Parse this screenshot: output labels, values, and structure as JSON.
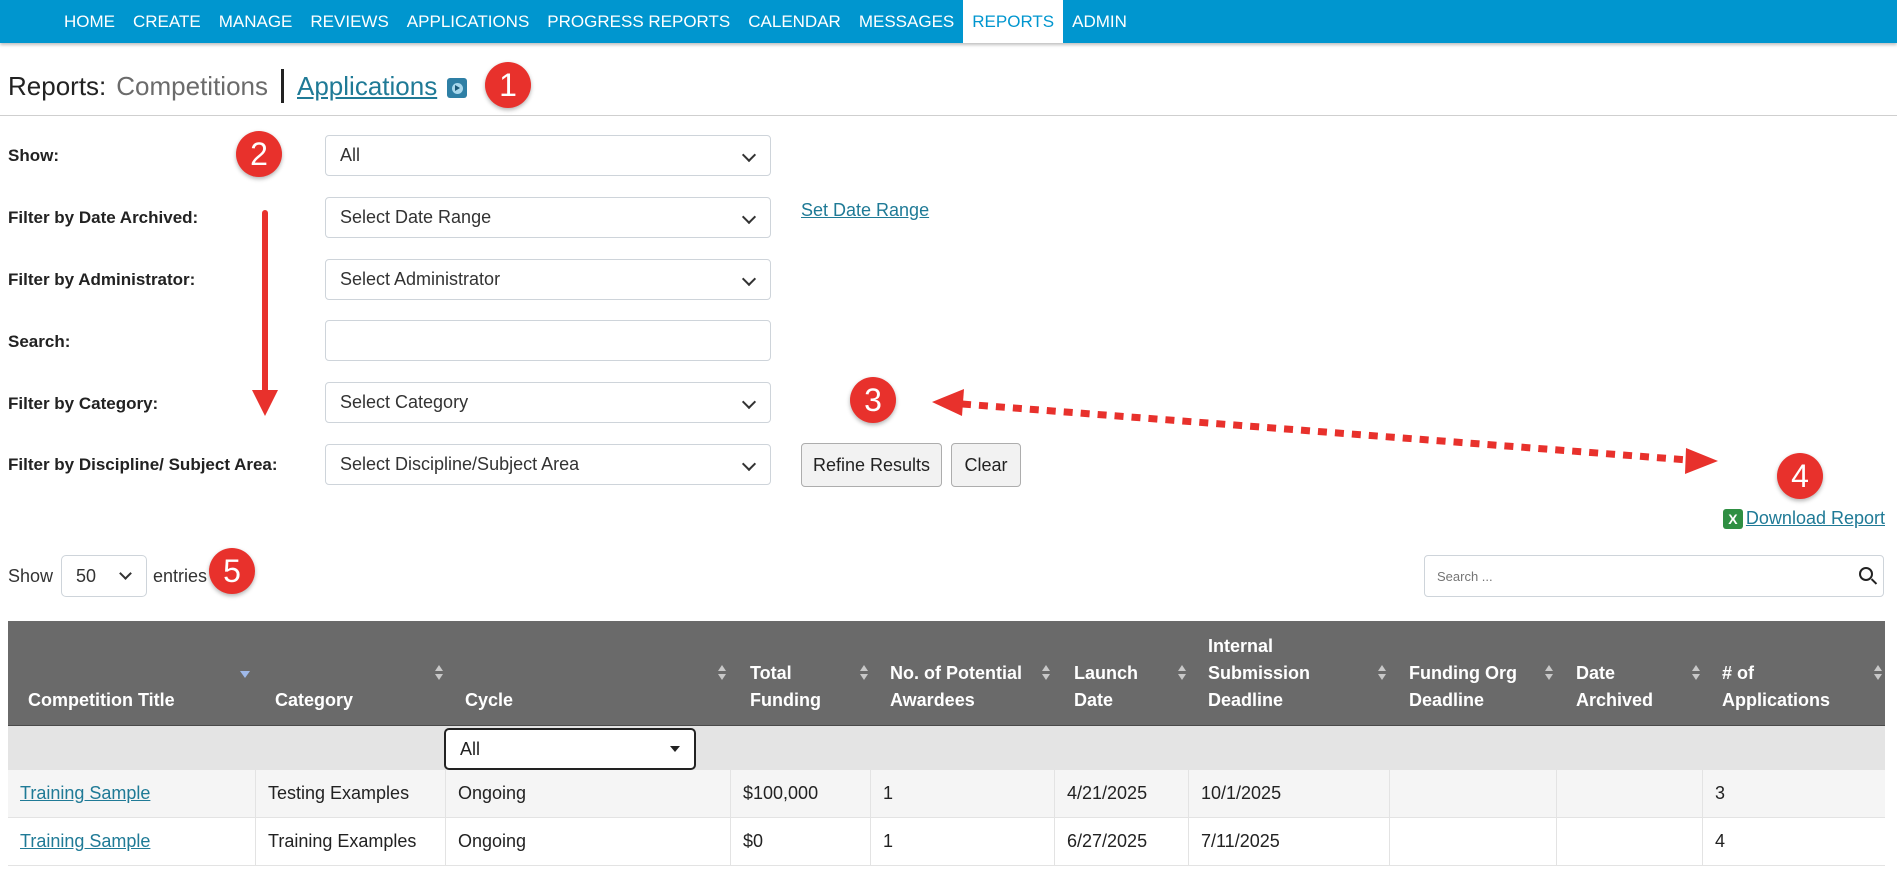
{
  "nav": {
    "items": [
      {
        "label": "HOME"
      },
      {
        "label": "CREATE"
      },
      {
        "label": "MANAGE"
      },
      {
        "label": "REVIEWS"
      },
      {
        "label": "APPLICATIONS"
      },
      {
        "label": "PROGRESS REPORTS"
      },
      {
        "label": "CALENDAR"
      },
      {
        "label": "MESSAGES"
      },
      {
        "label": "REPORTS"
      },
      {
        "label": "ADMIN"
      }
    ],
    "active": "REPORTS"
  },
  "header": {
    "label": "Reports:",
    "competitions": "Competitions",
    "applications": "Applications"
  },
  "filters": {
    "show": {
      "label": "Show:",
      "value": "All"
    },
    "date_archived": {
      "label": "Filter by Date Archived:",
      "value": "Select Date Range",
      "link": "Set Date Range"
    },
    "administrator": {
      "label": "Filter by Administrator:",
      "value": "Select Administrator"
    },
    "search": {
      "label": "Search:",
      "value": ""
    },
    "category": {
      "label": "Filter by Category:",
      "value": "Select Category"
    },
    "discipline": {
      "label": "Filter by Discipline/ Subject Area:",
      "value": "Select Discipline/Subject Area"
    },
    "refine_button": "Refine Results",
    "clear_button": "Clear"
  },
  "download": {
    "label": "Download Report",
    "icon": "excel-icon"
  },
  "entries": {
    "show": "Show",
    "value": "50",
    "suffix": "entries"
  },
  "table_search": {
    "placeholder": "Search ..."
  },
  "annotations": [
    "1",
    "2",
    "3",
    "4",
    "5"
  ],
  "table": {
    "columns": [
      {
        "label": "Competition Title"
      },
      {
        "label": "Category"
      },
      {
        "label": "Cycle"
      },
      {
        "label": "Total Funding"
      },
      {
        "label": "No. of Potential Awardees"
      },
      {
        "label": "Launch Date"
      },
      {
        "label": "Internal Submission Deadline"
      },
      {
        "label": "Funding Org Deadline"
      },
      {
        "label": "Date Archived"
      },
      {
        "label": "# of Applications"
      }
    ],
    "cycle_filter": "All",
    "rows": [
      {
        "title": "Training Sample",
        "category": "Testing Examples",
        "cycle": "Ongoing",
        "funding": "$100,000",
        "awardees": "1",
        "launch": "4/21/2025",
        "internal": "10/1/2025",
        "funding_org": "",
        "archived": "",
        "apps": "3"
      },
      {
        "title": "Training Sample",
        "category": "Training Examples",
        "cycle": "Ongoing",
        "funding": "$0",
        "awardees": "1",
        "launch": "6/27/2025",
        "internal": "7/11/2025",
        "funding_org": "",
        "archived": "",
        "apps": "4"
      }
    ]
  },
  "colors": {
    "nav": "#0096cf",
    "table_header": "#6a6a6a",
    "annotation": "#e8312c",
    "link": "#1f7a96"
  }
}
